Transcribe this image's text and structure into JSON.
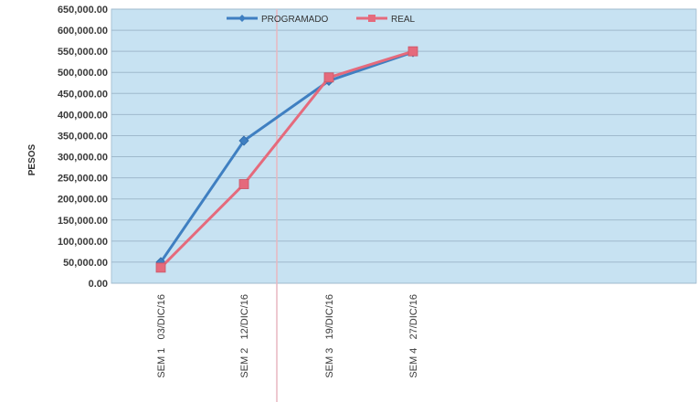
{
  "chart_data": {
    "type": "line",
    "ylabel": "PESOS",
    "xlabel": "",
    "ylim": [
      0,
      650000
    ],
    "y_ticks": [
      "0.00",
      "50,000.00",
      "100,000.00",
      "150,000.00",
      "200,000.00",
      "250,000.00",
      "300,000.00",
      "350,000.00",
      "400,000.00",
      "450,000.00",
      "500,000.00",
      "550,000.00",
      "600,000.00",
      "650,000.00"
    ],
    "categories": [
      "SEM 1   03/DIC/16",
      "SEM 2   12/DIC/16",
      "SEM 3   19/DIC/16",
      "SEM 4   27/DIC/16"
    ],
    "series": [
      {
        "name": "PROGRAMADO",
        "values": [
          50000,
          338000,
          480000,
          548000
        ]
      },
      {
        "name": "REAL",
        "values": [
          37000,
          235000,
          488000,
          550000
        ]
      }
    ],
    "grid": true,
    "legend_position": "top",
    "colors": {
      "plot_background": "#c7e2f2",
      "gridline": "#9fb9cc",
      "programado": "#3f7fc1",
      "real": "#e56a7c",
      "marker_line": "#e8b7c0"
    }
  }
}
